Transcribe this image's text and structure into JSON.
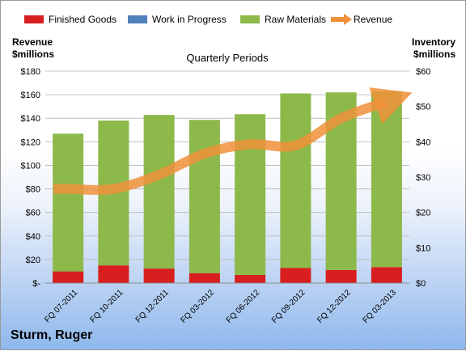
{
  "chart_data": {
    "type": "bar",
    "title": "Quarterly Periods",
    "categories": [
      "FQ 07-2011",
      "FQ 10-2011",
      "FQ 12-2011",
      "FQ 03-2012",
      "FQ 06-2012",
      "FQ 09-2012",
      "FQ 12-2012",
      "FQ 03-2013"
    ],
    "stacked": true,
    "left_axis": {
      "label_line1": "Revenue",
      "label_line2": "$millions",
      "range": [
        0,
        180
      ],
      "step": 20,
      "tick_labels": [
        "$-",
        "$20",
        "$40",
        "$60",
        "$80",
        "$100",
        "$120",
        "$140",
        "$160",
        "$180"
      ]
    },
    "right_axis": {
      "label_line1": "Inventory",
      "label_line2": "$millions",
      "range": [
        0,
        60
      ],
      "step": 10,
      "tick_labels": [
        "$0",
        "$10",
        "$20",
        "$30",
        "$40",
        "$50",
        "$60"
      ]
    },
    "series": [
      {
        "name": "Finished Goods",
        "axis": "right",
        "color": "#d81e1e",
        "values": [
          3.3,
          5.0,
          4.1,
          2.8,
          2.3,
          4.3,
          3.7,
          4.5
        ]
      },
      {
        "name": "Work in Progress",
        "axis": "right",
        "color": "#4f81bd",
        "values": [
          0,
          0,
          0,
          0,
          0,
          0,
          0,
          0
        ]
      },
      {
        "name": "Raw Materials",
        "axis": "right",
        "color": "#8db84a",
        "values": [
          39.0,
          41.0,
          43.5,
          43.4,
          45.5,
          49.4,
          50.3,
          49.8
        ]
      },
      {
        "name": "Revenue",
        "axis": "left",
        "type": "line",
        "color": "#f0913a",
        "values": [
          80,
          80,
          92,
          110,
          118,
          117,
          140,
          154
        ]
      }
    ],
    "grid": true,
    "legend": "top"
  },
  "company": "Sturm, Ruger"
}
